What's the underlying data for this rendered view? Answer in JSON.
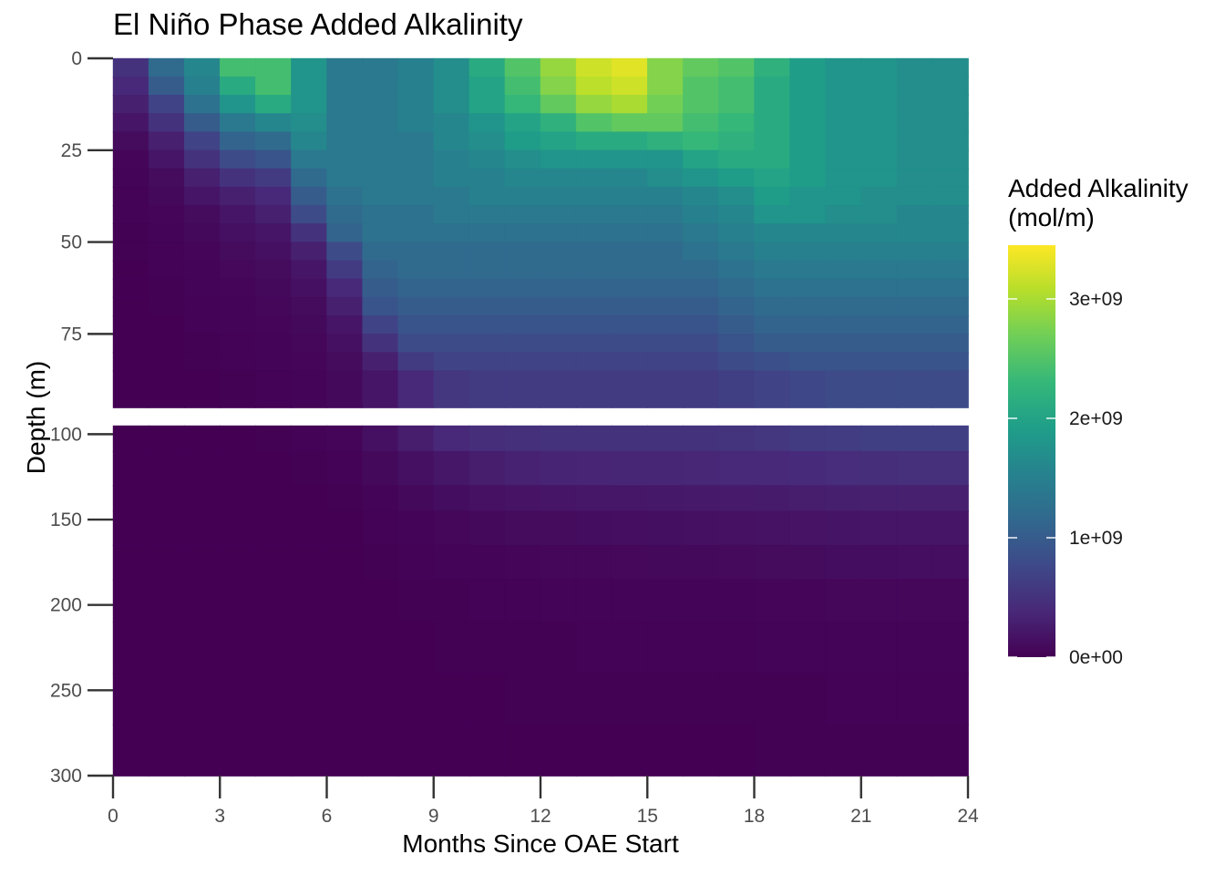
{
  "chart_data": {
    "type": "heatmap",
    "title": "El Niño Phase Added Alkalinity",
    "xlabel": "Months Since OAE Start",
    "ylabel": "Depth (m)",
    "x_ticks": [
      "0",
      "3",
      "6",
      "9",
      "12",
      "15",
      "18",
      "21",
      "24"
    ],
    "xlim": [
      0,
      24
    ],
    "panels": [
      {
        "name": "upper",
        "ylim": [
          0,
          95
        ],
        "y_ticks": [
          "0",
          "25",
          "50",
          "75"
        ],
        "y_tick_values": [
          0,
          25,
          50,
          75
        ],
        "depth_edges": [
          0,
          5,
          10,
          15,
          20,
          25,
          30,
          35,
          40,
          45,
          50,
          55,
          60,
          65,
          70,
          75,
          80,
          85,
          95
        ]
      },
      {
        "name": "lower",
        "ylim": [
          95,
          300
        ],
        "y_ticks": [
          "100",
          "150",
          "200",
          "250",
          "300"
        ],
        "y_tick_values": [
          100,
          150,
          200,
          250,
          300
        ],
        "depth_edges": [
          95,
          110,
          130,
          145,
          165,
          185,
          210,
          240,
          270,
          300
        ]
      }
    ],
    "legend": {
      "title_line1": "Added Alkalinity",
      "title_line2": "(mol/m)",
      "placement": "right",
      "colormap": "viridis",
      "range": [
        0,
        3450000000
      ],
      "ticks": [
        "0e+00",
        "1e+09",
        "2e+09",
        "3e+09"
      ],
      "tick_values": [
        0,
        1000000000,
        2000000000,
        3000000000
      ],
      "colors": [
        "#440154",
        "#482878",
        "#3e4989",
        "#31688e",
        "#26828e",
        "#1f9e89",
        "#35b779",
        "#6ece58",
        "#b5de2b",
        "#fde725"
      ]
    },
    "units": "x10^9 mol/m",
    "upper_values": [
      [
        0.5,
        1.2,
        1.6,
        2.4,
        2.4,
        1.8,
        1.4,
        1.4,
        1.5,
        1.7,
        2.1,
        2.5,
        2.9,
        3.2,
        3.3,
        2.8,
        2.6,
        2.5,
        2.2,
        1.9,
        1.8,
        1.8,
        1.7,
        1.7
      ],
      [
        0.4,
        1.0,
        1.5,
        2.1,
        2.4,
        1.8,
        1.4,
        1.4,
        1.5,
        1.7,
        2.0,
        2.4,
        2.8,
        3.1,
        3.2,
        2.8,
        2.5,
        2.4,
        2.1,
        1.9,
        1.8,
        1.8,
        1.7,
        1.7
      ],
      [
        0.3,
        0.7,
        1.3,
        1.8,
        2.1,
        1.8,
        1.4,
        1.4,
        1.5,
        1.7,
        2.0,
        2.3,
        2.6,
        2.9,
        3.0,
        2.7,
        2.5,
        2.4,
        2.1,
        1.9,
        1.8,
        1.8,
        1.7,
        1.7
      ],
      [
        0.2,
        0.5,
        1.0,
        1.4,
        1.6,
        1.7,
        1.4,
        1.4,
        1.5,
        1.6,
        1.8,
        2.0,
        2.2,
        2.5,
        2.6,
        2.6,
        2.4,
        2.3,
        2.1,
        1.9,
        1.8,
        1.8,
        1.7,
        1.7
      ],
      [
        0.1,
        0.3,
        0.7,
        1.1,
        1.2,
        1.6,
        1.4,
        1.4,
        1.4,
        1.6,
        1.7,
        1.9,
        2.0,
        2.1,
        2.1,
        2.2,
        2.3,
        2.2,
        2.1,
        1.9,
        1.8,
        1.8,
        1.7,
        1.7
      ],
      [
        0.05,
        0.2,
        0.5,
        0.8,
        0.9,
        1.4,
        1.4,
        1.4,
        1.4,
        1.5,
        1.6,
        1.7,
        1.8,
        1.8,
        1.8,
        1.8,
        2.0,
        2.1,
        2.1,
        1.9,
        1.8,
        1.8,
        1.7,
        1.7
      ],
      [
        0.03,
        0.1,
        0.3,
        0.5,
        0.6,
        1.2,
        1.4,
        1.4,
        1.4,
        1.5,
        1.5,
        1.6,
        1.6,
        1.6,
        1.6,
        1.7,
        1.8,
        1.9,
        2.0,
        1.9,
        1.8,
        1.8,
        1.7,
        1.7
      ],
      [
        0.02,
        0.08,
        0.2,
        0.3,
        0.4,
        1.0,
        1.3,
        1.4,
        1.4,
        1.4,
        1.5,
        1.5,
        1.5,
        1.5,
        1.5,
        1.5,
        1.6,
        1.7,
        1.9,
        1.8,
        1.8,
        1.7,
        1.7,
        1.7
      ],
      [
        0.02,
        0.05,
        0.1,
        0.2,
        0.3,
        0.8,
        1.2,
        1.3,
        1.3,
        1.4,
        1.4,
        1.4,
        1.4,
        1.4,
        1.4,
        1.4,
        1.5,
        1.6,
        1.8,
        1.8,
        1.7,
        1.7,
        1.6,
        1.6
      ],
      [
        0.01,
        0.03,
        0.08,
        0.15,
        0.2,
        0.5,
        1.1,
        1.3,
        1.3,
        1.3,
        1.3,
        1.3,
        1.3,
        1.3,
        1.3,
        1.3,
        1.4,
        1.5,
        1.6,
        1.6,
        1.6,
        1.6,
        1.6,
        1.6
      ],
      [
        0.01,
        0.02,
        0.05,
        0.1,
        0.15,
        0.3,
        0.8,
        1.2,
        1.2,
        1.2,
        1.2,
        1.2,
        1.2,
        1.2,
        1.2,
        1.2,
        1.3,
        1.4,
        1.5,
        1.5,
        1.5,
        1.5,
        1.5,
        1.5
      ],
      [
        0.0,
        0.02,
        0.04,
        0.07,
        0.1,
        0.2,
        0.6,
        1.1,
        1.2,
        1.2,
        1.2,
        1.2,
        1.2,
        1.2,
        1.2,
        1.2,
        1.2,
        1.3,
        1.4,
        1.4,
        1.4,
        1.4,
        1.4,
        1.4
      ],
      [
        0.0,
        0.01,
        0.03,
        0.05,
        0.08,
        0.15,
        0.4,
        1.0,
        1.1,
        1.1,
        1.1,
        1.1,
        1.1,
        1.1,
        1.1,
        1.1,
        1.1,
        1.2,
        1.3,
        1.3,
        1.3,
        1.3,
        1.3,
        1.3
      ],
      [
        0.0,
        0.01,
        0.02,
        0.04,
        0.06,
        0.1,
        0.3,
        0.9,
        1.0,
        1.0,
        1.0,
        1.0,
        1.0,
        1.0,
        1.0,
        1.0,
        1.0,
        1.1,
        1.2,
        1.2,
        1.2,
        1.2,
        1.2,
        1.2
      ],
      [
        0.0,
        0.0,
        0.02,
        0.03,
        0.05,
        0.08,
        0.2,
        0.7,
        0.9,
        0.9,
        0.9,
        0.9,
        0.9,
        0.9,
        0.9,
        0.9,
        0.9,
        1.0,
        1.1,
        1.1,
        1.1,
        1.1,
        1.1,
        1.1
      ],
      [
        0.0,
        0.0,
        0.01,
        0.02,
        0.04,
        0.06,
        0.15,
        0.5,
        0.8,
        0.8,
        0.8,
        0.8,
        0.8,
        0.8,
        0.8,
        0.8,
        0.8,
        0.9,
        1.0,
        1.0,
        1.0,
        1.0,
        1.0,
        1.0
      ],
      [
        0.0,
        0.0,
        0.01,
        0.02,
        0.03,
        0.05,
        0.1,
        0.3,
        0.6,
        0.7,
        0.7,
        0.7,
        0.7,
        0.7,
        0.7,
        0.7,
        0.7,
        0.8,
        0.85,
        0.9,
        0.9,
        0.9,
        0.9,
        0.9
      ],
      [
        0.0,
        0.0,
        0.0,
        0.01,
        0.02,
        0.04,
        0.08,
        0.2,
        0.4,
        0.55,
        0.6,
        0.6,
        0.6,
        0.6,
        0.6,
        0.6,
        0.6,
        0.65,
        0.7,
        0.75,
        0.8,
        0.8,
        0.8,
        0.8
      ]
    ],
    "lower_values": [
      [
        0.0,
        0.0,
        0.0,
        0.0,
        0.01,
        0.02,
        0.05,
        0.15,
        0.28,
        0.38,
        0.45,
        0.48,
        0.5,
        0.5,
        0.5,
        0.5,
        0.5,
        0.52,
        0.55,
        0.6,
        0.62,
        0.65,
        0.65,
        0.65
      ],
      [
        0.0,
        0.0,
        0.0,
        0.0,
        0.0,
        0.01,
        0.02,
        0.08,
        0.15,
        0.22,
        0.28,
        0.32,
        0.34,
        0.35,
        0.36,
        0.36,
        0.37,
        0.38,
        0.4,
        0.42,
        0.44,
        0.45,
        0.46,
        0.46
      ],
      [
        0.0,
        0.0,
        0.0,
        0.0,
        0.0,
        0.0,
        0.01,
        0.04,
        0.08,
        0.12,
        0.16,
        0.18,
        0.2,
        0.21,
        0.22,
        0.23,
        0.24,
        0.25,
        0.26,
        0.28,
        0.29,
        0.3,
        0.3,
        0.3
      ],
      [
        0.0,
        0.0,
        0.0,
        0.0,
        0.0,
        0.0,
        0.0,
        0.02,
        0.04,
        0.06,
        0.08,
        0.1,
        0.11,
        0.12,
        0.13,
        0.14,
        0.15,
        0.16,
        0.17,
        0.18,
        0.19,
        0.2,
        0.2,
        0.2
      ],
      [
        0.0,
        0.0,
        0.0,
        0.0,
        0.0,
        0.0,
        0.0,
        0.01,
        0.02,
        0.03,
        0.04,
        0.05,
        0.06,
        0.06,
        0.07,
        0.08,
        0.08,
        0.09,
        0.1,
        0.11,
        0.12,
        0.12,
        0.13,
        0.13
      ],
      [
        0.0,
        0.0,
        0.0,
        0.0,
        0.0,
        0.0,
        0.0,
        0.0,
        0.01,
        0.01,
        0.02,
        0.02,
        0.03,
        0.03,
        0.03,
        0.04,
        0.04,
        0.04,
        0.05,
        0.05,
        0.06,
        0.06,
        0.06,
        0.06
      ],
      [
        0.0,
        0.0,
        0.0,
        0.0,
        0.0,
        0.0,
        0.0,
        0.0,
        0.0,
        0.01,
        0.01,
        0.01,
        0.01,
        0.02,
        0.02,
        0.02,
        0.02,
        0.02,
        0.03,
        0.03,
        0.03,
        0.03,
        0.03,
        0.03
      ],
      [
        0.0,
        0.0,
        0.0,
        0.0,
        0.0,
        0.0,
        0.0,
        0.0,
        0.0,
        0.0,
        0.0,
        0.01,
        0.01,
        0.01,
        0.01,
        0.01,
        0.01,
        0.01,
        0.01,
        0.01,
        0.02,
        0.02,
        0.02,
        0.02
      ],
      [
        0.0,
        0.0,
        0.0,
        0.0,
        0.0,
        0.0,
        0.0,
        0.0,
        0.0,
        0.0,
        0.0,
        0.0,
        0.0,
        0.0,
        0.0,
        0.0,
        0.0,
        0.0,
        0.01,
        0.01,
        0.01,
        0.01,
        0.01,
        0.01
      ]
    ]
  }
}
